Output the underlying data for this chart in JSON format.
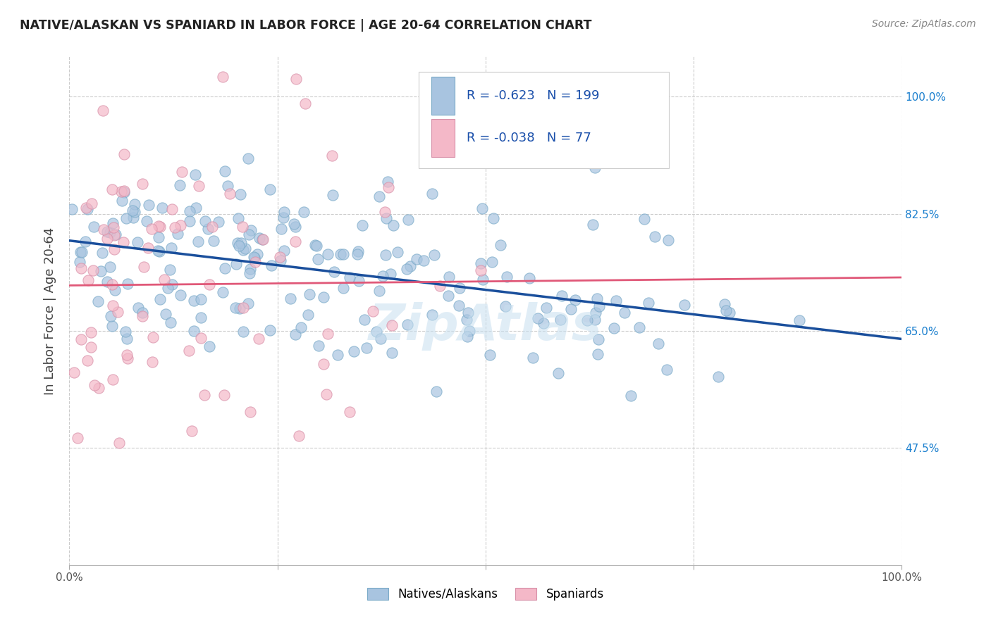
{
  "title": "NATIVE/ALASKAN VS SPANIARD IN LABOR FORCE | AGE 20-64 CORRELATION CHART",
  "source": "Source: ZipAtlas.com",
  "ylabel": "In Labor Force | Age 20-64",
  "xlim": [
    0.0,
    1.0
  ],
  "ylim": [
    0.3,
    1.06
  ],
  "yticks": [
    0.475,
    0.65,
    0.825,
    1.0
  ],
  "ytick_labels": [
    "47.5%",
    "65.0%",
    "82.5%",
    "100.0%"
  ],
  "blue_R": -0.623,
  "blue_N": 199,
  "pink_R": -0.038,
  "pink_N": 77,
  "blue_color": "#a8c4e0",
  "blue_edge_color": "#7aaac8",
  "blue_line_color": "#1a4f9c",
  "pink_color": "#f4b8c8",
  "pink_edge_color": "#d890a8",
  "pink_line_color": "#e05878",
  "legend_blue_label": "Natives/Alaskans",
  "legend_pink_label": "Spaniards",
  "blue_line_y0": 0.785,
  "blue_line_y1": 0.638,
  "pink_line_y0": 0.718,
  "pink_line_y1": 0.73,
  "background_color": "#ffffff",
  "grid_color": "#cccccc",
  "watermark_text": "ZipAtlas",
  "watermark_color": "#c8dff0"
}
